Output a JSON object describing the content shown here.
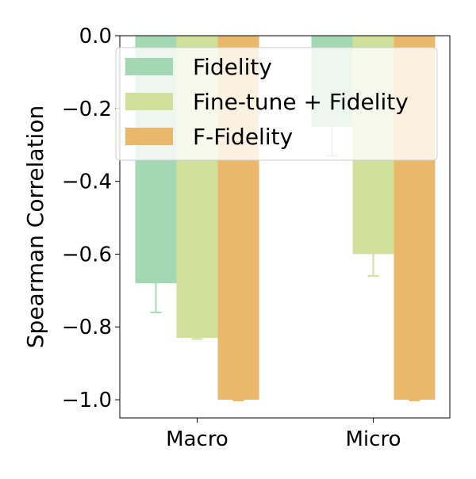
{
  "chart_data": {
    "type": "bar",
    "title": "",
    "xlabel": "",
    "ylabel": "Spearman Correlation",
    "ylim": [
      -1.05,
      0.0
    ],
    "yticks": [
      0.0,
      -0.2,
      -0.4,
      -0.6,
      -0.8,
      -1.0
    ],
    "ytick_labels": [
      "0.0",
      "−0.2",
      "−0.4",
      "−0.6",
      "−0.8",
      "−1.0"
    ],
    "categories": [
      "Macro",
      "Micro"
    ],
    "series": [
      {
        "name": "Fidelity",
        "color": "#a4d8b4",
        "values": [
          -0.68,
          -0.25
        ],
        "errors": [
          0.08,
          0.08
        ]
      },
      {
        "name": "Fine-tune + Fidelity",
        "color": "#d1e19c",
        "values": [
          -0.83,
          -0.6
        ],
        "errors": [
          0.003,
          0.06
        ]
      },
      {
        "name": "F-Fidelity",
        "color": "#e9b86b",
        "values": [
          -1.0,
          -1.0
        ],
        "errors": [
          0.002,
          0.002
        ]
      }
    ],
    "legend_position": "top-right",
    "grid": false
  }
}
